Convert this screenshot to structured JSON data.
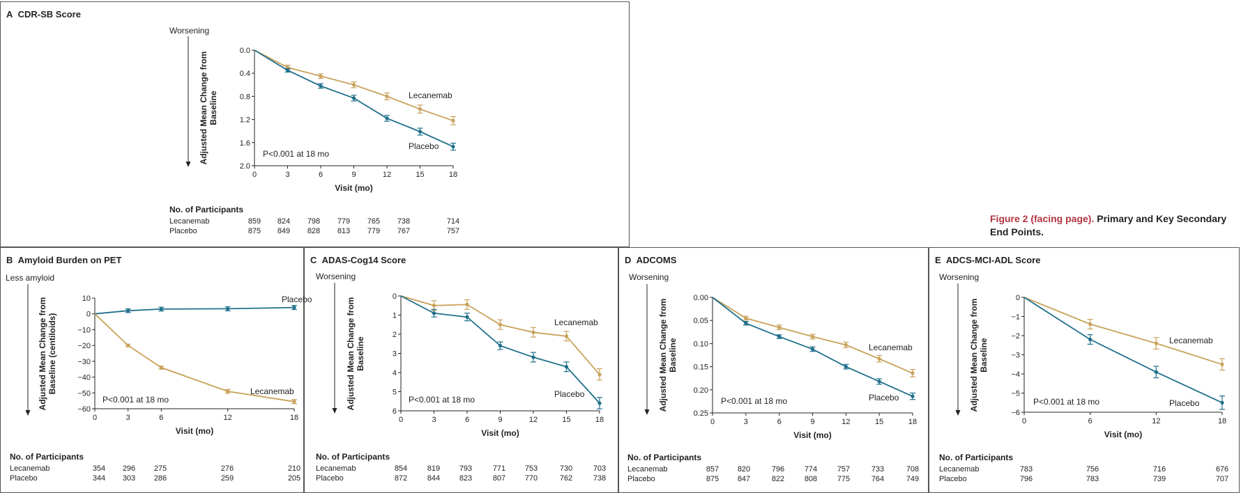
{
  "caption": {
    "label": "Figure 2 (facing page).",
    "text": "Primary and Key Secondary End Points."
  },
  "colors": {
    "lecanemab": "#c9a15a",
    "placebo": "#1f6f8b"
  },
  "chart_data": [
    {
      "id": "A",
      "letter": "A",
      "title": "CDR-SB Score",
      "type": "line",
      "direction_label": "Worsening",
      "ylabel_lines": [
        "Adjusted Mean Change from",
        "Baseline"
      ],
      "xlabel": "Visit (mo)",
      "x": [
        0,
        3,
        6,
        9,
        12,
        15,
        18
      ],
      "xticks": [
        "0",
        "3",
        "6",
        "9",
        "12",
        "15",
        "18"
      ],
      "yticks": [
        "0.0",
        "0.4",
        "0.8",
        "1.2",
        "1.6",
        "2.0"
      ],
      "ylim": [
        0,
        2.0
      ],
      "y_inverted": true,
      "pvalue": "P<0.001 at 18 mo",
      "series": [
        {
          "name": "Lecanemab",
          "values": [
            0,
            0.3,
            0.45,
            0.6,
            0.8,
            1.02,
            1.22
          ],
          "err": [
            0,
            0.04,
            0.04,
            0.05,
            0.06,
            0.07,
            0.07
          ]
        },
        {
          "name": "Placebo",
          "values": [
            0,
            0.35,
            0.62,
            0.83,
            1.18,
            1.41,
            1.67
          ],
          "err": [
            0,
            0.03,
            0.04,
            0.05,
            0.05,
            0.06,
            0.06
          ]
        }
      ],
      "participants": {
        "header": "No. of Participants",
        "rows": [
          {
            "name": "Lecanemab",
            "values": [
              "859",
              "824",
              "798",
              "779",
              "765",
              "738",
              "714"
            ]
          },
          {
            "name": "Placebo",
            "values": [
              "875",
              "849",
              "828",
              "813",
              "779",
              "767",
              "757"
            ]
          }
        ]
      }
    },
    {
      "id": "B",
      "letter": "B",
      "title": "Amyloid Burden on PET",
      "type": "line",
      "direction_label": "Less amyloid",
      "ylabel_lines": [
        "Adjusted Mean Change from",
        "Baseline (centiloids)"
      ],
      "xlabel": "Visit (mo)",
      "x": [
        0,
        3,
        6,
        12,
        18
      ],
      "xticks": [
        "0",
        "3",
        "6",
        "12",
        "18"
      ],
      "yticks": [
        "10",
        "0",
        "−10",
        "−20",
        "−30",
        "−40",
        "−50",
        "−60"
      ],
      "ylim": [
        10,
        -60
      ],
      "y_inverted": false,
      "pvalue": "P<0.001 at 18 mo",
      "series": [
        {
          "name": "Placebo",
          "values": [
            0,
            2,
            3,
            3.2,
            4
          ],
          "err": [
            0,
            1.2,
            1.2,
            1.3,
            1.3
          ]
        },
        {
          "name": "Lecanemab",
          "values": [
            0,
            -20,
            -34,
            -49,
            -55.5
          ],
          "err": [
            0,
            0.8,
            1,
            1.2,
            1.3
          ]
        }
      ],
      "participants": {
        "header": "No. of Participants",
        "rows": [
          {
            "name": "Lecanemab",
            "values": [
              "354",
              "296",
              "275",
              "276",
              "210"
            ]
          },
          {
            "name": "Placebo",
            "values": [
              "344",
              "303",
              "286",
              "259",
              "205"
            ]
          }
        ]
      }
    },
    {
      "id": "C",
      "letter": "C",
      "title": "ADAS-Cog14 Score",
      "type": "line",
      "direction_label": "Worsening",
      "ylabel_lines": [
        "Adjusted Mean Change from",
        "Baseline"
      ],
      "xlabel": "Visit (mo)",
      "x": [
        0,
        3,
        6,
        9,
        12,
        15,
        18
      ],
      "xticks": [
        "0",
        "3",
        "6",
        "9",
        "12",
        "15",
        "18"
      ],
      "yticks": [
        "0",
        "1",
        "2",
        "3",
        "4",
        "5",
        "6"
      ],
      "ylim": [
        0,
        6
      ],
      "y_inverted": true,
      "pvalue": "P<0.001 at 18 mo",
      "series": [
        {
          "name": "Lecanemab",
          "values": [
            0,
            0.5,
            0.45,
            1.5,
            1.9,
            2.1,
            4.1
          ],
          "err": [
            0,
            0.25,
            0.25,
            0.25,
            0.25,
            0.25,
            0.3
          ]
        },
        {
          "name": "Placebo",
          "values": [
            0,
            0.9,
            1.1,
            2.6,
            3.2,
            3.7,
            5.6
          ],
          "err": [
            0,
            0.2,
            0.2,
            0.2,
            0.25,
            0.25,
            0.3
          ]
        }
      ],
      "participants": {
        "header": "No. of Participants",
        "rows": [
          {
            "name": "Lecanemab",
            "values": [
              "854",
              "819",
              "793",
              "771",
              "753",
              "730",
              "703"
            ]
          },
          {
            "name": "Placebo",
            "values": [
              "872",
              "844",
              "823",
              "807",
              "770",
              "762",
              "738"
            ]
          }
        ]
      }
    },
    {
      "id": "D",
      "letter": "D",
      "title": "ADCOMS",
      "type": "line",
      "direction_label": "Worsening",
      "ylabel_lines": [
        "Adjusted Mean Change from",
        "Baseline"
      ],
      "xlabel": "Visit (mo)",
      "x": [
        0,
        3,
        6,
        9,
        12,
        15,
        18
      ],
      "xticks": [
        "0",
        "3",
        "6",
        "9",
        "12",
        "15",
        "18"
      ],
      "yticks": [
        "0.00",
        "0.05",
        "0.10",
        "0.15",
        "0.20",
        "0.25"
      ],
      "ylim": [
        0,
        0.25
      ],
      "y_inverted": true,
      "pvalue": "P<0.001 at 18 mo",
      "series": [
        {
          "name": "Lecanemab",
          "values": [
            0,
            0.045,
            0.065,
            0.085,
            0.103,
            0.133,
            0.164
          ],
          "err": [
            0,
            0.004,
            0.005,
            0.005,
            0.006,
            0.007,
            0.008
          ]
        },
        {
          "name": "Placebo",
          "values": [
            0,
            0.056,
            0.085,
            0.112,
            0.15,
            0.182,
            0.214
          ],
          "err": [
            0,
            0.004,
            0.004,
            0.005,
            0.005,
            0.006,
            0.007
          ]
        }
      ],
      "participants": {
        "header": "No. of Participants",
        "rows": [
          {
            "name": "Lecanemab",
            "values": [
              "857",
              "820",
              "796",
              "774",
              "757",
              "733",
              "708"
            ]
          },
          {
            "name": "Placebo",
            "values": [
              "875",
              "847",
              "822",
              "808",
              "775",
              "764",
              "749"
            ]
          }
        ]
      }
    },
    {
      "id": "E",
      "letter": "E",
      "title": "ADCS-MCI-ADL Score",
      "type": "line",
      "direction_label": "Worsening",
      "ylabel_lines": [
        "Adjusted Mean Change from",
        "Baseline"
      ],
      "xlabel": "Visit (mo)",
      "x": [
        0,
        6,
        12,
        18
      ],
      "xticks": [
        "0",
        "6",
        "12",
        "18"
      ],
      "yticks": [
        "0",
        "−1",
        "−2",
        "−3",
        "−4",
        "−5",
        "−6"
      ],
      "ylim": [
        0,
        -6
      ],
      "y_inverted": false,
      "pvalue": "P<0.001 at 18 mo",
      "series": [
        {
          "name": "Lecanemab",
          "values": [
            0,
            -1.4,
            -2.4,
            -3.5
          ],
          "err": [
            0,
            0.25,
            0.3,
            0.3
          ]
        },
        {
          "name": "Placebo",
          "values": [
            0,
            -2.2,
            -3.9,
            -5.5
          ],
          "err": [
            0,
            0.25,
            0.3,
            0.35
          ]
        }
      ],
      "participants": {
        "header": "No. of Participants",
        "rows": [
          {
            "name": "Lecanemab",
            "values": [
              "783",
              "756",
              "716",
              "676"
            ]
          },
          {
            "name": "Placebo",
            "values": [
              "796",
              "783",
              "739",
              "707"
            ]
          }
        ]
      }
    }
  ]
}
